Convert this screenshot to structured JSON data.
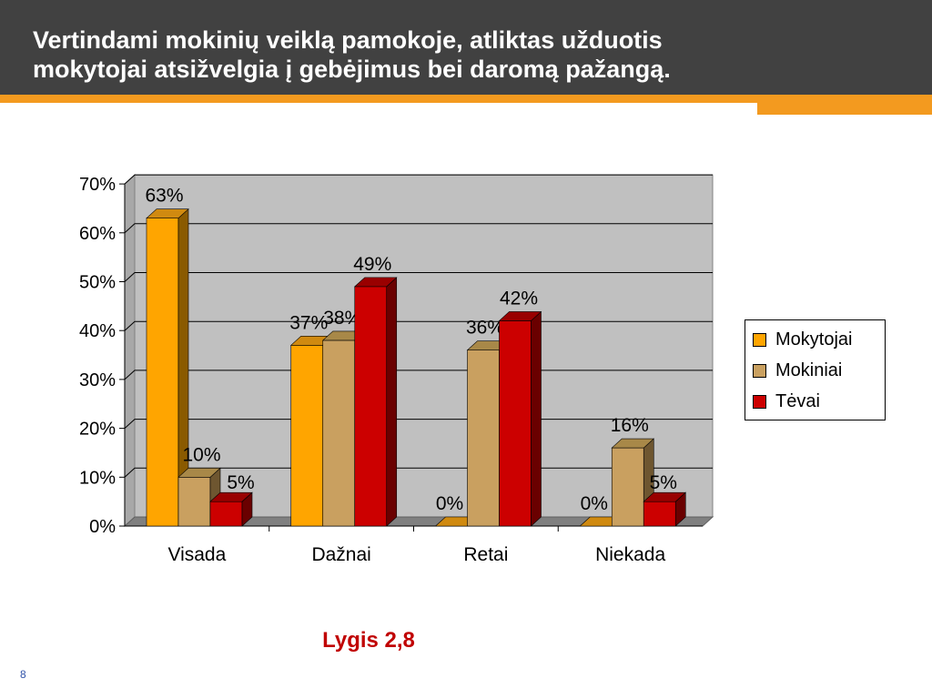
{
  "header": {
    "title": "Vertindami mokinių veiklą pamokoje, atliktas užduotis\nmokytojai  atsižvelgia į  gebėjimus bei daromą pažangą."
  },
  "caption": "Lygis 2,8",
  "page_number": "8",
  "colors": {
    "header_bg": "#414141",
    "accent": "#f39a1f",
    "caption": "#c00000"
  },
  "chart_data": {
    "type": "bar",
    "style": "3d-clustered-column",
    "categories": [
      "Visada",
      "Dažnai",
      "Retai",
      "Niekada"
    ],
    "series": [
      {
        "name": "Mokytojai",
        "values": [
          63,
          37,
          0,
          0
        ],
        "labels": [
          "63%",
          "37%",
          "0%",
          "0%"
        ],
        "color": "#ffa500",
        "side_color": "#8a5a00",
        "top_color": "#d08a10"
      },
      {
        "name": "Mokiniai",
        "values": [
          10,
          38,
          36,
          16
        ],
        "labels": [
          "10%",
          "38%",
          "36%",
          "16%"
        ],
        "color": "#c9a060",
        "side_color": "#6e5630",
        "top_color": "#a88848"
      },
      {
        "name": "Tėvai",
        "values": [
          5,
          49,
          42,
          5
        ],
        "labels": [
          "5%",
          "49%",
          "42%",
          "5%"
        ],
        "color": "#cc0000",
        "side_color": "#6a0000",
        "top_color": "#990000"
      }
    ],
    "y_ticks": [
      "0%",
      "10%",
      "20%",
      "30%",
      "40%",
      "50%",
      "60%",
      "70%"
    ],
    "ylim": [
      0,
      70
    ],
    "grid": true,
    "legend_position": "right",
    "plot_background": "#c0c0c0"
  }
}
